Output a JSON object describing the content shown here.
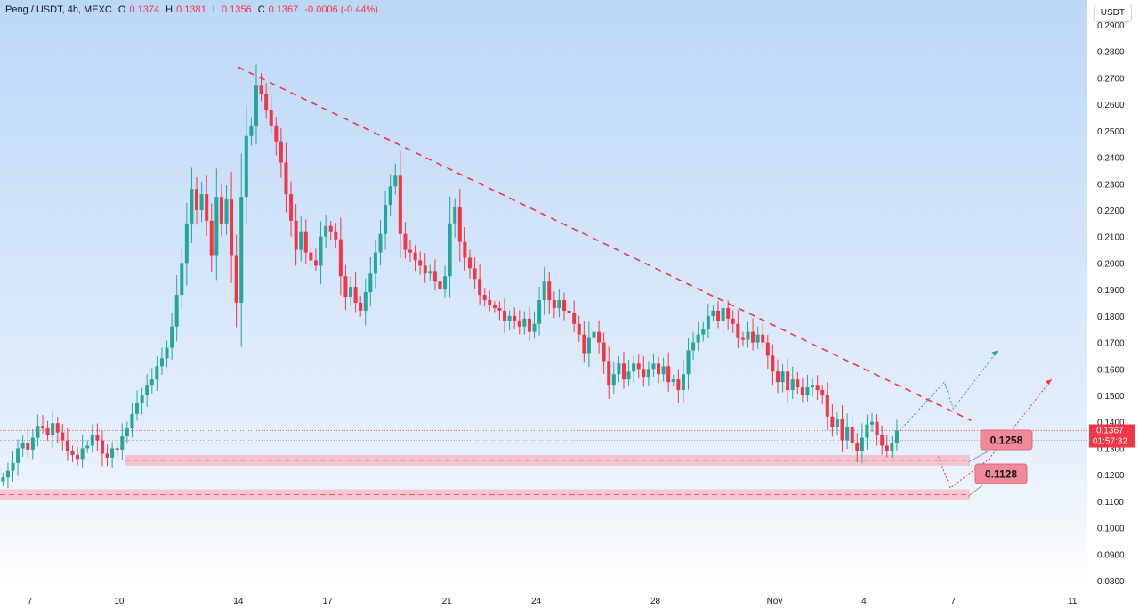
{
  "header": {
    "symbol": "Peng / USDT, 4h, MEXC",
    "open_label": "O",
    "open": "0.1374",
    "high_label": "H",
    "high": "0.1381",
    "low_label": "L",
    "low": "0.1356",
    "close_label": "C",
    "close": "0.1367",
    "change": "-0.0006 (-0.44%)"
  },
  "currency_button": "USDT",
  "price_badge": {
    "price": "0.1367",
    "countdown": "01:57:32"
  },
  "callouts": [
    {
      "label": "0.1258",
      "level": 0.1258
    },
    {
      "label": "0.1128",
      "level": 0.1128
    }
  ],
  "colors": {
    "up": "#26a69a",
    "down": "#f23645",
    "trendline": "#f23645",
    "zone": "#f7b6c1",
    "callout_bg": "#f08a96",
    "badge": "#f23645",
    "bg_gradient_top": "#bcd8f7",
    "bg_gradient_bottom": "#ffffff"
  },
  "chart_data": {
    "type": "candlestick",
    "y_ticks": [
      "0.2900",
      "0.2800",
      "0.2700",
      "0.2600",
      "0.2500",
      "0.2400",
      "0.2300",
      "0.2200",
      "0.2100",
      "0.2000",
      "0.1900",
      "0.1800",
      "0.1700",
      "0.1600",
      "0.1500",
      "0.1400",
      "0.1300",
      "0.1200",
      "0.1100",
      "0.1000",
      "0.0900",
      "0.0800"
    ],
    "ylim": [
      0.079,
      0.292
    ],
    "x_ticks": [
      {
        "label": "7",
        "day": 7
      },
      {
        "label": "10",
        "day": 10
      },
      {
        "label": "14",
        "day": 14
      },
      {
        "label": "17",
        "day": 17
      },
      {
        "label": "21",
        "day": 21
      },
      {
        "label": "24",
        "day": 24
      },
      {
        "label": "28",
        "day": 28
      },
      {
        "label": "Nov",
        "day": 32
      },
      {
        "label": "4",
        "day": 35
      },
      {
        "label": "7",
        "day": 38
      },
      {
        "label": "11",
        "day": 42
      }
    ],
    "xlim_days": [
      6.0,
      42.5
    ],
    "candle_start_day": 6.1,
    "candle_interval_days": 0.1667,
    "closes": [
      0.119,
      0.1215,
      0.1245,
      0.13,
      0.132,
      0.1295,
      0.134,
      0.1385,
      0.1375,
      0.135,
      0.1395,
      0.136,
      0.133,
      0.129,
      0.1275,
      0.126,
      0.13,
      0.131,
      0.135,
      0.133,
      0.128,
      0.1265,
      0.13,
      0.1295,
      0.1345,
      0.1375,
      0.143,
      0.147,
      0.15,
      0.154,
      0.156,
      0.161,
      0.164,
      0.168,
      0.176,
      0.188,
      0.2,
      0.215,
      0.228,
      0.22,
      0.226,
      0.216,
      0.203,
      0.225,
      0.215,
      0.224,
      0.203,
      0.185,
      0.225,
      0.248,
      0.252,
      0.267,
      0.264,
      0.258,
      0.252,
      0.246,
      0.238,
      0.226,
      0.216,
      0.205,
      0.212,
      0.204,
      0.201,
      0.199,
      0.21,
      0.214,
      0.212,
      0.209,
      0.195,
      0.187,
      0.191,
      0.185,
      0.182,
      0.189,
      0.196,
      0.204,
      0.211,
      0.222,
      0.229,
      0.233,
      0.211,
      0.205,
      0.204,
      0.201,
      0.199,
      0.196,
      0.197,
      0.193,
      0.19,
      0.195,
      0.215,
      0.221,
      0.208,
      0.202,
      0.198,
      0.194,
      0.188,
      0.186,
      0.184,
      0.183,
      0.182,
      0.178,
      0.18,
      0.178,
      0.176,
      0.179,
      0.174,
      0.177,
      0.186,
      0.193,
      0.186,
      0.183,
      0.186,
      0.182,
      0.181,
      0.177,
      0.173,
      0.166,
      0.172,
      0.174,
      0.17,
      0.163,
      0.154,
      0.158,
      0.162,
      0.156,
      0.159,
      0.162,
      0.16,
      0.157,
      0.16,
      0.162,
      0.158,
      0.161,
      0.155,
      0.156,
      0.152,
      0.158,
      0.167,
      0.17,
      0.173,
      0.175,
      0.18,
      0.182,
      0.178,
      0.183,
      0.179,
      0.177,
      0.172,
      0.171,
      0.174,
      0.17,
      0.173,
      0.17,
      0.165,
      0.159,
      0.155,
      0.159,
      0.152,
      0.156,
      0.153,
      0.15,
      0.153,
      0.154,
      0.152,
      0.15,
      0.142,
      0.138,
      0.141,
      0.133,
      0.138,
      0.132,
      0.129,
      0.134,
      0.139,
      0.14,
      0.135,
      0.131,
      0.129,
      0.132,
      0.1367
    ]
  }
}
